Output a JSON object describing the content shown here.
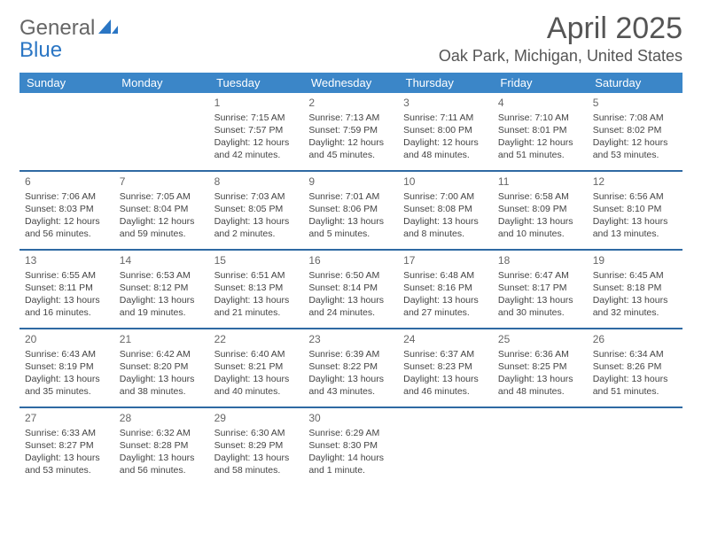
{
  "brand": {
    "word1": "General",
    "word2": "Blue",
    "icon_color": "#2b76c4"
  },
  "title": "April 2025",
  "location": "Oak Park, Michigan, United States",
  "colors": {
    "header_bg": "#3b86c8",
    "header_fg": "#ffffff",
    "row_border": "#2f6aa3",
    "text": "#444444",
    "title": "#555555"
  },
  "weekdays": [
    "Sunday",
    "Monday",
    "Tuesday",
    "Wednesday",
    "Thursday",
    "Friday",
    "Saturday"
  ],
  "weeks": [
    [
      null,
      null,
      {
        "n": "1",
        "sr": "Sunrise: 7:15 AM",
        "ss": "Sunset: 7:57 PM",
        "d1": "Daylight: 12 hours",
        "d2": "and 42 minutes."
      },
      {
        "n": "2",
        "sr": "Sunrise: 7:13 AM",
        "ss": "Sunset: 7:59 PM",
        "d1": "Daylight: 12 hours",
        "d2": "and 45 minutes."
      },
      {
        "n": "3",
        "sr": "Sunrise: 7:11 AM",
        "ss": "Sunset: 8:00 PM",
        "d1": "Daylight: 12 hours",
        "d2": "and 48 minutes."
      },
      {
        "n": "4",
        "sr": "Sunrise: 7:10 AM",
        "ss": "Sunset: 8:01 PM",
        "d1": "Daylight: 12 hours",
        "d2": "and 51 minutes."
      },
      {
        "n": "5",
        "sr": "Sunrise: 7:08 AM",
        "ss": "Sunset: 8:02 PM",
        "d1": "Daylight: 12 hours",
        "d2": "and 53 minutes."
      }
    ],
    [
      {
        "n": "6",
        "sr": "Sunrise: 7:06 AM",
        "ss": "Sunset: 8:03 PM",
        "d1": "Daylight: 12 hours",
        "d2": "and 56 minutes."
      },
      {
        "n": "7",
        "sr": "Sunrise: 7:05 AM",
        "ss": "Sunset: 8:04 PM",
        "d1": "Daylight: 12 hours",
        "d2": "and 59 minutes."
      },
      {
        "n": "8",
        "sr": "Sunrise: 7:03 AM",
        "ss": "Sunset: 8:05 PM",
        "d1": "Daylight: 13 hours",
        "d2": "and 2 minutes."
      },
      {
        "n": "9",
        "sr": "Sunrise: 7:01 AM",
        "ss": "Sunset: 8:06 PM",
        "d1": "Daylight: 13 hours",
        "d2": "and 5 minutes."
      },
      {
        "n": "10",
        "sr": "Sunrise: 7:00 AM",
        "ss": "Sunset: 8:08 PM",
        "d1": "Daylight: 13 hours",
        "d2": "and 8 minutes."
      },
      {
        "n": "11",
        "sr": "Sunrise: 6:58 AM",
        "ss": "Sunset: 8:09 PM",
        "d1": "Daylight: 13 hours",
        "d2": "and 10 minutes."
      },
      {
        "n": "12",
        "sr": "Sunrise: 6:56 AM",
        "ss": "Sunset: 8:10 PM",
        "d1": "Daylight: 13 hours",
        "d2": "and 13 minutes."
      }
    ],
    [
      {
        "n": "13",
        "sr": "Sunrise: 6:55 AM",
        "ss": "Sunset: 8:11 PM",
        "d1": "Daylight: 13 hours",
        "d2": "and 16 minutes."
      },
      {
        "n": "14",
        "sr": "Sunrise: 6:53 AM",
        "ss": "Sunset: 8:12 PM",
        "d1": "Daylight: 13 hours",
        "d2": "and 19 minutes."
      },
      {
        "n": "15",
        "sr": "Sunrise: 6:51 AM",
        "ss": "Sunset: 8:13 PM",
        "d1": "Daylight: 13 hours",
        "d2": "and 21 minutes."
      },
      {
        "n": "16",
        "sr": "Sunrise: 6:50 AM",
        "ss": "Sunset: 8:14 PM",
        "d1": "Daylight: 13 hours",
        "d2": "and 24 minutes."
      },
      {
        "n": "17",
        "sr": "Sunrise: 6:48 AM",
        "ss": "Sunset: 8:16 PM",
        "d1": "Daylight: 13 hours",
        "d2": "and 27 minutes."
      },
      {
        "n": "18",
        "sr": "Sunrise: 6:47 AM",
        "ss": "Sunset: 8:17 PM",
        "d1": "Daylight: 13 hours",
        "d2": "and 30 minutes."
      },
      {
        "n": "19",
        "sr": "Sunrise: 6:45 AM",
        "ss": "Sunset: 8:18 PM",
        "d1": "Daylight: 13 hours",
        "d2": "and 32 minutes."
      }
    ],
    [
      {
        "n": "20",
        "sr": "Sunrise: 6:43 AM",
        "ss": "Sunset: 8:19 PM",
        "d1": "Daylight: 13 hours",
        "d2": "and 35 minutes."
      },
      {
        "n": "21",
        "sr": "Sunrise: 6:42 AM",
        "ss": "Sunset: 8:20 PM",
        "d1": "Daylight: 13 hours",
        "d2": "and 38 minutes."
      },
      {
        "n": "22",
        "sr": "Sunrise: 6:40 AM",
        "ss": "Sunset: 8:21 PM",
        "d1": "Daylight: 13 hours",
        "d2": "and 40 minutes."
      },
      {
        "n": "23",
        "sr": "Sunrise: 6:39 AM",
        "ss": "Sunset: 8:22 PM",
        "d1": "Daylight: 13 hours",
        "d2": "and 43 minutes."
      },
      {
        "n": "24",
        "sr": "Sunrise: 6:37 AM",
        "ss": "Sunset: 8:23 PM",
        "d1": "Daylight: 13 hours",
        "d2": "and 46 minutes."
      },
      {
        "n": "25",
        "sr": "Sunrise: 6:36 AM",
        "ss": "Sunset: 8:25 PM",
        "d1": "Daylight: 13 hours",
        "d2": "and 48 minutes."
      },
      {
        "n": "26",
        "sr": "Sunrise: 6:34 AM",
        "ss": "Sunset: 8:26 PM",
        "d1": "Daylight: 13 hours",
        "d2": "and 51 minutes."
      }
    ],
    [
      {
        "n": "27",
        "sr": "Sunrise: 6:33 AM",
        "ss": "Sunset: 8:27 PM",
        "d1": "Daylight: 13 hours",
        "d2": "and 53 minutes."
      },
      {
        "n": "28",
        "sr": "Sunrise: 6:32 AM",
        "ss": "Sunset: 8:28 PM",
        "d1": "Daylight: 13 hours",
        "d2": "and 56 minutes."
      },
      {
        "n": "29",
        "sr": "Sunrise: 6:30 AM",
        "ss": "Sunset: 8:29 PM",
        "d1": "Daylight: 13 hours",
        "d2": "and 58 minutes."
      },
      {
        "n": "30",
        "sr": "Sunrise: 6:29 AM",
        "ss": "Sunset: 8:30 PM",
        "d1": "Daylight: 14 hours",
        "d2": "and 1 minute."
      },
      null,
      null,
      null
    ]
  ]
}
